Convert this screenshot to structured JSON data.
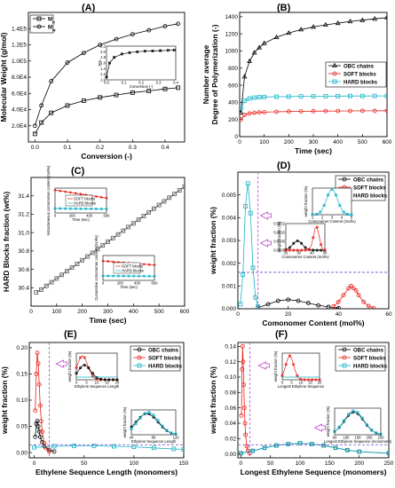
{
  "figure": {
    "panel_tags": [
      "(A)",
      "(B)",
      "(C)",
      "(D)",
      "(E)",
      "(F)"
    ]
  },
  "chart_data": [
    {
      "id": "A",
      "type": "line",
      "tag": "(A)",
      "xlabel": "Conversion (-)",
      "ylabel": "Molecular Weight (g/mol)",
      "xlim": [
        -0.02,
        0.46
      ],
      "ylim": [
        0,
        160000
      ],
      "xticks": [
        0.0,
        0.1,
        0.2,
        0.3,
        0.4
      ],
      "xtick_labels": [
        "0.0",
        "0.1",
        "0.2",
        "0.3",
        "0.4"
      ],
      "yticks": [
        20000,
        40000,
        60000,
        80000,
        100000,
        120000,
        140000
      ],
      "ytick_labels": [
        "2.0E4",
        "4.0E4",
        "6.0E4",
        "8.0E4",
        "1.0E5",
        "1.2E5",
        "1.4E5"
      ],
      "legend_loc": "top-left",
      "series": [
        {
          "name": "M",
          "sub": "n",
          "marker": "square",
          "color": "#000000",
          "x": [
            0.0,
            0.02,
            0.05,
            0.1,
            0.15,
            0.2,
            0.25,
            0.3,
            0.35,
            0.4,
            0.44
          ],
          "y": [
            10000,
            24000,
            36000,
            45000,
            51000,
            55000,
            58000,
            61000,
            63000,
            65500,
            67000
          ]
        },
        {
          "name": "M",
          "sub": "w",
          "marker": "circle",
          "color": "#000000",
          "x": [
            0.0,
            0.02,
            0.05,
            0.1,
            0.15,
            0.2,
            0.25,
            0.3,
            0.35,
            0.4,
            0.44
          ],
          "y": [
            20000,
            45000,
            75000,
            98000,
            110000,
            120000,
            127000,
            133000,
            138000,
            143000,
            146000
          ]
        }
      ],
      "inset": {
        "ylabel": "PDI",
        "xlabel": "Conversion (-)",
        "xlim": [
          0,
          0.45
        ],
        "ylim": [
          1.0,
          2.2
        ],
        "xtick_labels": [
          "0.0",
          "0.1",
          "0.2",
          "0.3",
          "0.4"
        ],
        "ytick_labels": [
          "1.0",
          "1.2",
          "1.4",
          "1.6",
          "1.8",
          "2.0",
          "2.2"
        ],
        "x": [
          0.0,
          0.02,
          0.05,
          0.1,
          0.15,
          0.2,
          0.25,
          0.3,
          0.35,
          0.4,
          0.44
        ],
        "y": [
          1.1,
          1.6,
          1.8,
          1.92,
          1.97,
          2.0,
          2.02,
          2.03,
          2.04,
          2.05,
          2.06
        ]
      }
    },
    {
      "id": "B",
      "type": "line",
      "tag": "(B)",
      "xlabel": "Time (sec)",
      "ylabel": "Number average Degree of Polymerization (-)",
      "ylabel_lines": [
        "Number average",
        "Degree of Polymerization (-)"
      ],
      "xlim": [
        0,
        600
      ],
      "ylim": [
        0,
        1450
      ],
      "xticks": [
        0,
        100,
        200,
        300,
        400,
        500,
        600
      ],
      "xtick_labels": [
        "0",
        "100",
        "200",
        "300",
        "400",
        "500",
        "600"
      ],
      "yticks": [
        0,
        200,
        400,
        600,
        800,
        1000,
        1200,
        1400
      ],
      "ytick_labels": [
        "0",
        "200",
        "400",
        "600",
        "800",
        "1000",
        "1200",
        "1400"
      ],
      "legend_loc": "center-right",
      "series": [
        {
          "name": "OBC chains",
          "marker": "triangle",
          "color": "#000000",
          "x": [
            5,
            20,
            40,
            60,
            80,
            100,
            150,
            200,
            250,
            300,
            350,
            400,
            450,
            500,
            550,
            600
          ],
          "y": [
            280,
            700,
            880,
            980,
            1040,
            1090,
            1160,
            1210,
            1250,
            1280,
            1305,
            1325,
            1345,
            1360,
            1375,
            1390
          ]
        },
        {
          "name": "SOFT blocks",
          "marker": "circle",
          "color": "#e8201a",
          "x": [
            5,
            20,
            40,
            60,
            80,
            100,
            150,
            200,
            250,
            300,
            350,
            400,
            450,
            500,
            550,
            600
          ],
          "y": [
            200,
            255,
            270,
            278,
            283,
            286,
            290,
            293,
            295,
            297,
            298,
            299,
            300,
            301,
            301,
            302
          ]
        },
        {
          "name": "HARD blocks",
          "marker": "square",
          "color": "#19b3c8",
          "x": [
            5,
            20,
            40,
            60,
            80,
            100,
            150,
            200,
            250,
            300,
            350,
            400,
            450,
            500,
            550,
            600
          ],
          "y": [
            330,
            420,
            445,
            455,
            460,
            463,
            466,
            468,
            470,
            471,
            472,
            473,
            474,
            474,
            475,
            475
          ]
        }
      ]
    },
    {
      "id": "C",
      "type": "scatter",
      "tag": "(C)",
      "xlabel": "Time (sec)",
      "ylabel": "HARD Blocks fraction (wt%)",
      "xlim": [
        0,
        600
      ],
      "ylim": [
        30.2,
        31.6
      ],
      "xticks": [
        0,
        100,
        200,
        300,
        400,
        500,
        600
      ],
      "xtick_labels": [
        "0",
        "100",
        "200",
        "300",
        "400",
        "500",
        "600"
      ],
      "yticks": [
        30.4,
        30.6,
        30.8,
        31.0,
        31.2,
        31.4
      ],
      "ytick_labels": [
        "30.4",
        "30.6",
        "30.8",
        "31.0",
        "31.2",
        "31.4"
      ],
      "series": [
        {
          "name": "HARD blocks",
          "marker": "square",
          "color": "#555555",
          "x": [
            20,
            40,
            60,
            80,
            100,
            120,
            140,
            160,
            180,
            200,
            220,
            240,
            260,
            280,
            300,
            320,
            340,
            360,
            380,
            400,
            420,
            440,
            460,
            480,
            500,
            520,
            540,
            560,
            580,
            600
          ],
          "y": [
            30.35,
            30.38,
            30.42,
            30.46,
            30.5,
            30.54,
            30.58,
            30.62,
            30.66,
            30.7,
            30.74,
            30.78,
            30.82,
            30.86,
            30.9,
            30.94,
            30.98,
            31.02,
            31.06,
            31.1,
            31.14,
            31.18,
            31.22,
            31.26,
            31.3,
            31.34,
            31.38,
            31.42,
            31.46,
            31.5
          ]
        }
      ],
      "insets": [
        {
          "ylabel": "Instantaneous comonomer content (mol%)",
          "xlabel": "Time (sec)",
          "xtick_labels": [
            "0",
            "200",
            "400",
            "600"
          ],
          "legend": [
            "SOFT blocks",
            "HARD blocks"
          ],
          "soft_y": [
            0.92,
            0.6
          ],
          "hard_y": [
            0.18,
            0.16
          ]
        },
        {
          "ylabel": "Cumulative comonomer content (mol%)",
          "xlabel": "Time (sec)",
          "xtick_labels": [
            "0",
            "200",
            "400",
            "600"
          ],
          "legend": [
            "SOFT blocks",
            "HARD blocks"
          ],
          "soft_y": [
            0.78,
            0.62
          ],
          "hard_y": [
            0.18,
            0.17
          ]
        }
      ]
    },
    {
      "id": "D",
      "type": "line",
      "tag": "(D)",
      "xlabel": "Comonomer Content (mol%)",
      "ylabel": "weight fraction (%)",
      "xlim": [
        0,
        60
      ],
      "ylim": [
        0,
        0.006
      ],
      "xticks": [
        0,
        20,
        40,
        60
      ],
      "xtick_labels": [
        "0",
        "20",
        "40",
        "60"
      ],
      "yticks": [
        0.0,
        0.001,
        0.002,
        0.003,
        0.004,
        0.005
      ],
      "ytick_labels": [
        "0.000",
        "0.001",
        "0.002",
        "0.003",
        "0.004",
        "0.005"
      ],
      "legend_loc": "top-right",
      "series": [
        {
          "name": "OBC chains",
          "marker": "circle",
          "color": "#000000",
          "x": [
            8,
            12,
            16,
            20,
            24,
            28,
            32,
            36,
            40
          ],
          "y": [
            5e-05,
            0.0002,
            0.00035,
            0.0004,
            0.00035,
            0.00025,
            0.00015,
            8e-05,
            3e-05
          ]
        },
        {
          "name": "SOFT blocks",
          "marker": "circle",
          "color": "#e8201a",
          "x": [
            38,
            40,
            42,
            44,
            45,
            46,
            47,
            48,
            50,
            52,
            54
          ],
          "y": [
            0.0001,
            0.0003,
            0.0006,
            0.0009,
            0.001,
            0.0009,
            0.0008,
            0.0006,
            0.0003,
            0.00012,
            3e-05
          ]
        },
        {
          "name": "HARD blocks",
          "marker": "square",
          "color": "#19b3c8",
          "x": [
            1,
            2,
            3,
            4,
            5,
            6,
            7,
            8
          ],
          "y": [
            0.0002,
            0.0015,
            0.0045,
            0.0055,
            0.0042,
            0.0018,
            0.0005,
            0.0001
          ]
        }
      ],
      "insets": [
        {
          "ylabel": "weight fraction (%)",
          "xlabel": "Comonomer Content (mol%)",
          "xtick_labels": [
            "1",
            "2",
            "3",
            "4",
            "5"
          ]
        },
        {
          "ylabel": "weight fraction (%)",
          "xlabel": "Comonomer Content (mol%)",
          "xtick_labels": [
            "20",
            "30",
            "40",
            "50"
          ],
          "ytick_labels": [
            "0.0000",
            "0.0005",
            "0.0010",
            "0.0015"
          ]
        }
      ]
    },
    {
      "id": "E",
      "type": "line",
      "tag": "(E)",
      "xlabel": "Ethylene Sequence Length (monomers)",
      "ylabel": "weight fraction (%)",
      "xlim": [
        -5,
        150
      ],
      "ylim": [
        -0.01,
        0.21
      ],
      "xticks": [
        0,
        50,
        100,
        150
      ],
      "xtick_labels": [
        "0",
        "50",
        "100",
        "150"
      ],
      "yticks": [
        0.0,
        0.05,
        0.1,
        0.15,
        0.2
      ],
      "ytick_labels": [
        "0.00",
        "0.05",
        "0.10",
        "0.15",
        "0.20"
      ],
      "legend_loc": "top-right",
      "series": [
        {
          "name": "OBC chains",
          "marker": "circle",
          "color": "#000000",
          "x": [
            1,
            2,
            3,
            4,
            5,
            6,
            8,
            10,
            15,
            20
          ],
          "y": [
            0.03,
            0.055,
            0.06,
            0.05,
            0.04,
            0.03,
            0.02,
            0.012,
            0.005,
            0.002
          ]
        },
        {
          "name": "SOFT blocks",
          "marker": "circle",
          "color": "#e8201a",
          "x": [
            1,
            2,
            3,
            4,
            5,
            6,
            7,
            8,
            10,
            12,
            15
          ],
          "y": [
            0.08,
            0.15,
            0.19,
            0.17,
            0.13,
            0.09,
            0.06,
            0.04,
            0.018,
            0.008,
            0.002
          ]
        },
        {
          "name": "HARD blocks",
          "marker": "square",
          "color": "#19b3c8",
          "x": [
            0,
            20,
            40,
            60,
            80,
            100,
            120,
            140,
            150
          ],
          "y": [
            0.01,
            0.012,
            0.013,
            0.013,
            0.012,
            0.011,
            0.009,
            0.007,
            0.006
          ]
        }
      ],
      "insets": [
        {
          "ylabel": "weight fraction (%)",
          "xlabel": "Ethylene Sequence Length",
          "xtick_labels": [
            "0",
            "5",
            "10",
            "15",
            "20"
          ]
        },
        {
          "ylabel": "weight fraction (%)",
          "xlabel": "Ethylene Sequence Length",
          "xtick_labels": [
            "40",
            "80",
            "120"
          ]
        }
      ]
    },
    {
      "id": "F",
      "type": "line",
      "tag": "(F)",
      "xlabel": "Longest Ethylene Sequence (monomers)",
      "ylabel": "weight fraction (%)",
      "xlim": [
        -5,
        250
      ],
      "ylim": [
        -0.005,
        0.145
      ],
      "xticks": [
        0,
        50,
        100,
        150,
        200,
        250
      ],
      "xtick_labels": [
        "0",
        "50",
        "100",
        "150",
        "200",
        "250"
      ],
      "yticks": [
        0.0,
        0.02,
        0.04,
        0.06,
        0.08,
        0.1,
        0.12,
        0.14
      ],
      "ytick_labels": [
        "0.00",
        "0.02",
        "0.04",
        "0.06",
        "0.08",
        "0.10",
        "0.12",
        "0.14"
      ],
      "legend_loc": "top-right",
      "series": [
        {
          "name": "OBC chains",
          "marker": "circle",
          "color": "#000000",
          "x": [
            0,
            20,
            40,
            60,
            80,
            100,
            120,
            140,
            160,
            180,
            200,
            250
          ],
          "y": [
            0.001,
            0.004,
            0.008,
            0.011,
            0.013,
            0.014,
            0.013,
            0.011,
            0.008,
            0.005,
            0.003,
            0.001
          ]
        },
        {
          "name": "SOFT blocks",
          "marker": "circle",
          "color": "#e8201a",
          "x": [
            1,
            2,
            3,
            4,
            5,
            6,
            7,
            8,
            10,
            12,
            15
          ],
          "y": [
            0.05,
            0.11,
            0.14,
            0.12,
            0.09,
            0.06,
            0.04,
            0.025,
            0.01,
            0.004,
            0.001
          ]
        },
        {
          "name": "HARD blocks",
          "marker": "square",
          "color": "#19b3c8",
          "x": [
            0,
            20,
            40,
            60,
            80,
            100,
            120,
            140,
            160,
            180,
            200,
            250
          ],
          "y": [
            0.001,
            0.004,
            0.008,
            0.011,
            0.013,
            0.014,
            0.013,
            0.011,
            0.008,
            0.005,
            0.003,
            0.001
          ]
        }
      ],
      "insets": [
        {
          "ylabel": "weight fraction (%)",
          "xlabel": "Longest Ethylene Sequence",
          "xtick_labels": [
            "0",
            "5",
            "10",
            "15",
            "20"
          ]
        },
        {
          "ylabel": "weight fraction (%)",
          "xlabel": "Longest Ethylene Sequence (monomers)",
          "xtick_labels": [
            "50",
            "100",
            "150",
            "200",
            "250"
          ]
        }
      ]
    }
  ]
}
